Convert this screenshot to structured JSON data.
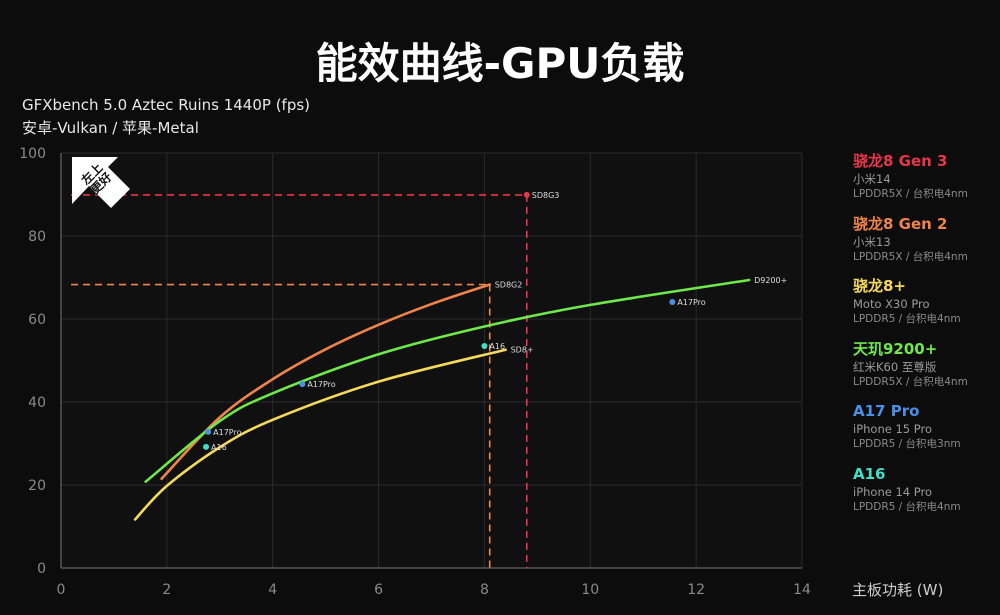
{
  "title": "能效曲线-GPU负载",
  "subtitle_lines": [
    "GFXbench 5.0 Aztec Ruins 1440P (fps)",
    "安卓-Vulkan / 苹果-Metal"
  ],
  "badge": "左上更好",
  "chart_data": {
    "type": "line",
    "title": "能效曲线-GPU负载",
    "xlabel": "主板功耗 (W)",
    "ylabel": "GFXbench 5.0 Aztec Ruins 1440P (fps)",
    "xlim": [
      0,
      14
    ],
    "ylim": [
      0,
      100
    ],
    "xticks": [
      "0",
      "2",
      "4",
      "6",
      "8",
      "10",
      "12",
      "14"
    ],
    "yticks": [
      "0",
      "20",
      "40",
      "60",
      "80",
      "100"
    ],
    "grid": true,
    "legend_position": "right",
    "series": [
      {
        "name": "骁龙8 Gen 2",
        "color": "#f0834a",
        "label": "SD8G2",
        "x": [
          1.9,
          3,
          4,
          5,
          6,
          7,
          8.1
        ],
        "y": [
          21.5,
          36.3,
          45.5,
          52.7,
          58.6,
          63.6,
          68.3
        ]
      },
      {
        "name": "天玑9200+",
        "color": "#6fe84a",
        "label": "D9200+",
        "x": [
          1.6,
          3,
          4,
          6,
          8,
          10,
          13
        ],
        "y": [
          20.8,
          35.4,
          42.1,
          51.5,
          58.2,
          63.4,
          69.4
        ]
      },
      {
        "name": "骁龙8+",
        "color": "#f5d95a",
        "label": "SD8+",
        "x": [
          1.4,
          2,
          3,
          4,
          6,
          8.4
        ],
        "y": [
          11.7,
          19.8,
          29.1,
          35.7,
          44.9,
          52.6
        ]
      }
    ],
    "points": [
      {
        "name": "骁龙8 Gen 3",
        "label": "SD8G3",
        "color": "#e8364a",
        "x": 8.8,
        "y": 89.9
      },
      {
        "name": "A17 Pro",
        "label": "A17Pro",
        "color": "#4a90e8",
        "x": 11.55,
        "y": 64.1
      },
      {
        "name": "A17 Pro",
        "label": "A17Pro",
        "color": "#4a90e8",
        "x": 4.56,
        "y": 44.3
      },
      {
        "name": "A17 Pro",
        "label": "A17Pro",
        "color": "#4a90e8",
        "x": 2.78,
        "y": 32.8
      },
      {
        "name": "A16",
        "label": "A16",
        "color": "#3fe0c8",
        "x": 8.0,
        "y": 53.5
      },
      {
        "name": "A16",
        "label": "A16",
        "color": "#3fe0c8",
        "x": 2.74,
        "y": 29.2
      }
    ],
    "reference_lines": [
      {
        "color": "#e8364a",
        "x": 8.8,
        "y": 89.9
      },
      {
        "color": "#f0834a",
        "x": 8.1,
        "y": 68.3
      }
    ]
  },
  "legend": [
    {
      "name": "骁龙8 Gen 3",
      "device": "小米14",
      "mem": "LPDDR5X / 台积电4nm",
      "color": "#e8364a"
    },
    {
      "name": "骁龙8 Gen 2",
      "device": "小米13",
      "mem": "LPDDR5X / 台积电4nm",
      "color": "#f0834a"
    },
    {
      "name": "骁龙8+",
      "device": "Moto X30 Pro",
      "mem": "LPDDR5 / 台积电4nm",
      "color": "#f5d95a"
    },
    {
      "name": "天玑9200+",
      "device": "红米K60 至尊版",
      "mem": "LPDDR5X / 台积电4nm",
      "color": "#6fe84a"
    },
    {
      "name": "A17 Pro",
      "device": "iPhone 15 Pro",
      "mem": "LPDDR5 / 台积电3nm",
      "color": "#4a90e8"
    },
    {
      "name": "A16",
      "device": "iPhone 14 Pro",
      "mem": "LPDDR5 / 台积电4nm",
      "color": "#3fe0c8"
    }
  ]
}
